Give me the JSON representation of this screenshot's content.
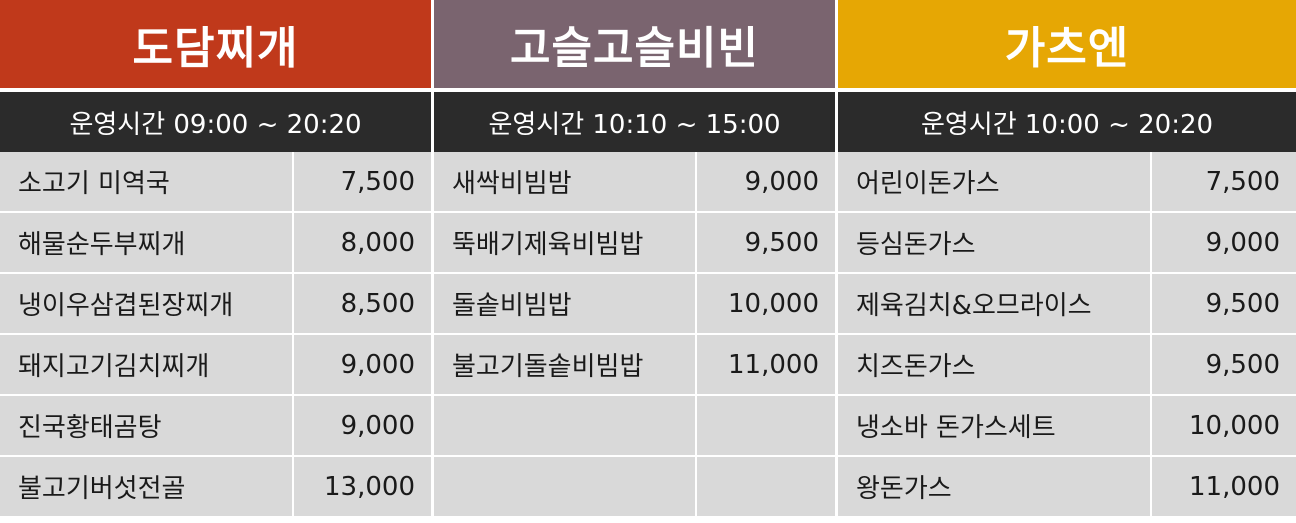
{
  "colors": {
    "section_1": "#c0391b",
    "section_2": "#7a646f",
    "section_3": "#e6a704",
    "hours_bar": "#2b2b2b",
    "cell": "#d9d9d9"
  },
  "sections": [
    {
      "title": "도담찌개",
      "hours": "운영시간 09:00 ~ 20:20",
      "items": [
        {
          "name": "소고기 미역국",
          "price": "7,500"
        },
        {
          "name": "해물순두부찌개",
          "price": "8,000"
        },
        {
          "name": "냉이우삼겹된장찌개",
          "price": "8,500"
        },
        {
          "name": "돼지고기김치찌개",
          "price": "9,000"
        },
        {
          "name": "진국황태곰탕",
          "price": "9,000"
        },
        {
          "name": "불고기버섯전골",
          "price": "13,000"
        }
      ]
    },
    {
      "title": "고슬고슬비빈",
      "hours": "운영시간 10:10 ~ 15:00",
      "items": [
        {
          "name": "새싹비빔밤",
          "price": "9,000"
        },
        {
          "name": "뚝배기제육비빔밥",
          "price": "9,500"
        },
        {
          "name": "돌솥비빔밥",
          "price": "10,000"
        },
        {
          "name": "불고기돌솥비빔밥",
          "price": "11,000"
        },
        {
          "name": "",
          "price": ""
        },
        {
          "name": "",
          "price": ""
        }
      ]
    },
    {
      "title": "가츠엔",
      "hours": "운영시간 10:00 ~ 20:20",
      "items": [
        {
          "name": "어린이돈가스",
          "price": "7,500"
        },
        {
          "name": "등심돈가스",
          "price": "9,000"
        },
        {
          "name": "제육김치&오므라이스",
          "price": "9,500"
        },
        {
          "name": "치즈돈가스",
          "price": "9,500"
        },
        {
          "name": "냉소바 돈가스세트",
          "price": "10,000"
        },
        {
          "name": "왕돈가스",
          "price": "11,000"
        }
      ]
    }
  ]
}
